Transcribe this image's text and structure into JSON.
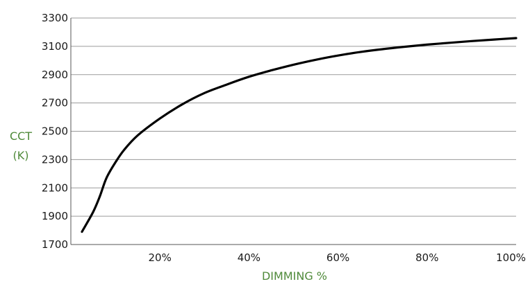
{
  "chart_data": {
    "type": "line",
    "title": "",
    "xlabel": "DIMMING %",
    "ylabel_lines": [
      "CCT",
      "(K)"
    ],
    "xlim": [
      0,
      100
    ],
    "ylim": [
      1700,
      3300
    ],
    "x_ticks": [
      20,
      40,
      60,
      80,
      100
    ],
    "x_tick_labels": [
      "20%",
      "40%",
      "60%",
      "80%",
      "100%"
    ],
    "y_ticks": [
      1700,
      1900,
      2100,
      2300,
      2500,
      2700,
      2900,
      3100,
      3300
    ],
    "y_tick_labels": [
      "1700",
      "1900",
      "2100",
      "2300",
      "2500",
      "2700",
      "2900",
      "3100",
      "3300"
    ],
    "grid": "horizontal",
    "series": [
      {
        "color": "#000000",
        "x": [
          2.5,
          5,
          6.5,
          8,
          10,
          12,
          15,
          20,
          25,
          30,
          35,
          40,
          45,
          50,
          55,
          60,
          65,
          70,
          75,
          80,
          85,
          90,
          95,
          100
        ],
        "y": [
          1790,
          1930,
          2040,
          2170,
          2280,
          2370,
          2470,
          2590,
          2690,
          2770,
          2830,
          2885,
          2930,
          2970,
          3005,
          3035,
          3060,
          3080,
          3097,
          3112,
          3125,
          3137,
          3148,
          3158
        ]
      }
    ],
    "colors": {
      "axis_title": "#4f8a3a",
      "grid": "#9a9a9a",
      "line": "#000000",
      "tick_text": "#1a1a1a"
    }
  }
}
